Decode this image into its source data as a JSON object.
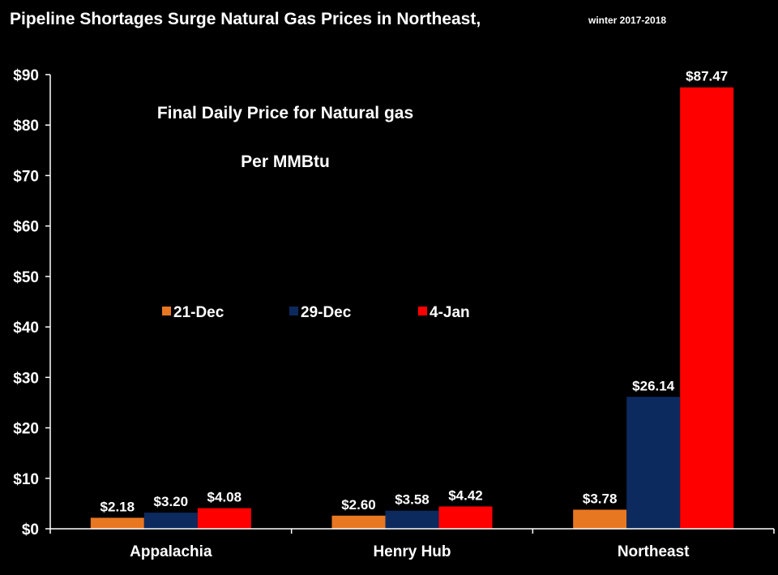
{
  "chart_data": {
    "type": "bar",
    "title": "Pipeline Shortages Surge Natural Gas Prices in Northeast,",
    "title_suffix": "winter 2017-2018",
    "annotation_line1": "Final Daily Price for Natural gas",
    "annotation_line2": "Per MMBtu",
    "categories": [
      "Appalachia",
      "Henry Hub",
      "Northeast"
    ],
    "series": [
      {
        "name": "21-Dec",
        "color": "#E87722",
        "values": [
          2.18,
          2.6,
          3.78
        ],
        "labels": [
          "$2.18",
          "$2.60",
          "$3.78"
        ]
      },
      {
        "name": "29-Dec",
        "color": "#0D2A5E",
        "values": [
          3.2,
          3.58,
          26.14
        ],
        "labels": [
          "$3.20",
          "$3.58",
          "$26.14"
        ]
      },
      {
        "name": "4-Jan",
        "color": "#FF0000",
        "values": [
          4.08,
          4.42,
          87.47
        ],
        "labels": [
          "$4.08",
          "$4.42",
          "$87.47"
        ]
      }
    ],
    "y_ticks": [
      "$0",
      "$10",
      "$20",
      "$30",
      "$40",
      "$50",
      "$60",
      "$70",
      "$80",
      "$90"
    ],
    "y_tick_values": [
      0,
      10,
      20,
      30,
      40,
      50,
      60,
      70,
      80,
      90
    ],
    "ylim": [
      0,
      90
    ],
    "grid": false,
    "legend_position": "center-left"
  }
}
